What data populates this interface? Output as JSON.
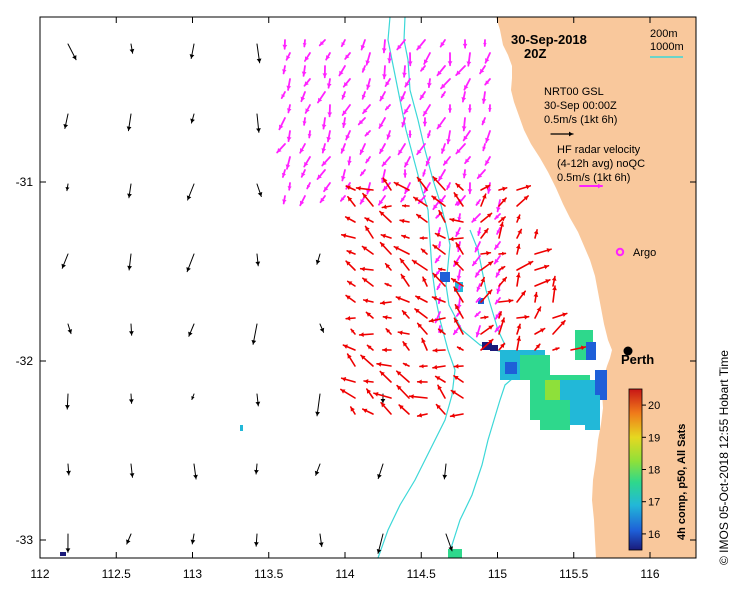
{
  "title": {
    "date": "30-Sep-2018",
    "time": "20Z"
  },
  "depth_legend": {
    "contour_1": "200m",
    "contour_2": "1000m",
    "contour_color": "#3cd8d8"
  },
  "model_legend": {
    "line1": "NRT00 GSL",
    "line2": "30-Sep 00:00Z",
    "line3": "0.5m/s (1kt 6h)",
    "arrow_color": "#000000"
  },
  "radar_legend": {
    "line1": "HF radar velocity",
    "line2": "(4-12h avg) noQC",
    "line3": "0.5m/s (1kt 6h)",
    "arrow_color": "#ff22ff"
  },
  "argo": {
    "label": "Argo",
    "color": "#ff22ff"
  },
  "city": {
    "label": "Perth"
  },
  "colorbar": {
    "label": "4h comp, p50, All Sats",
    "ticks": [
      "16",
      "17",
      "18",
      "19",
      "20"
    ],
    "min": 15.5,
    "max": 20.5
  },
  "credit": "© IMOS 05-Oct-2018 12:55 Hobart Time",
  "axes": {
    "x_ticks": [
      "112",
      "112.5",
      "113",
      "113.5",
      "114",
      "114.5",
      "115",
      "115.5",
      "116"
    ],
    "y_ticks": [
      "-31",
      "-32",
      "-33"
    ],
    "lon_range": [
      112,
      116.3
    ],
    "lat_range": [
      -33.1,
      -30.1
    ]
  },
  "colors": {
    "land": "#f9c89c",
    "vector_red": "#ee0000",
    "vector_magenta": "#ff22ff",
    "vector_black": "#000000"
  }
}
